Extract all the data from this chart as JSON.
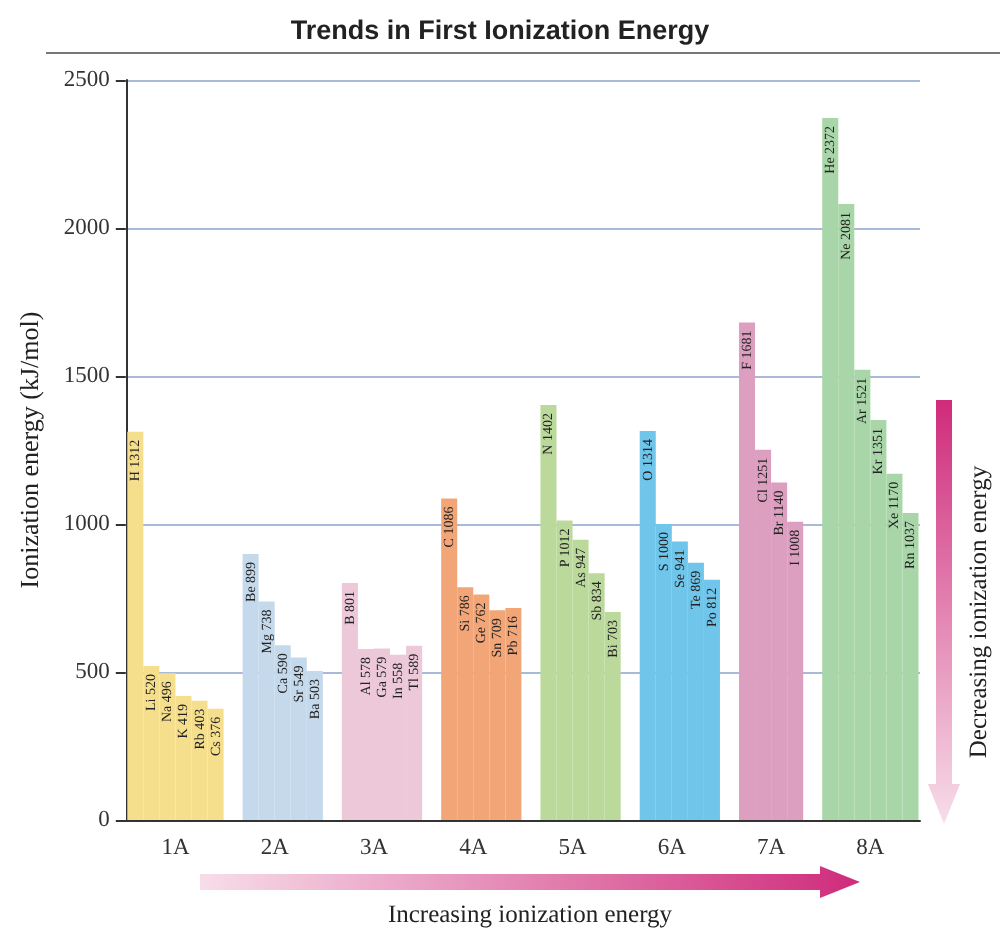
{
  "chart_data": {
    "type": "bar",
    "title": "Trends in First Ionization Energy",
    "ylabel": "Ionization energy (kJ/mol)",
    "categories": [
      "1A",
      "2A",
      "3A",
      "4A",
      "5A",
      "6A",
      "7A",
      "8A"
    ],
    "series": [
      {
        "values": [
          1312,
          null,
          null,
          null,
          null,
          null,
          null,
          2372
        ],
        "colors": [
          "#f5df8c",
          null,
          null,
          null,
          null,
          null,
          null,
          "#a9d6a9"
        ],
        "value_labels": [
          "H 1312",
          null,
          null,
          null,
          null,
          null,
          null,
          "He 2372"
        ]
      },
      {
        "values": [
          520,
          899,
          801,
          1086,
          1402,
          1314,
          1681,
          2081
        ],
        "colors": [
          "#f5df8c",
          "#c5d9ec",
          "#edc8d8",
          "#f2a678",
          "#bcd99c",
          "#6fc5ea",
          "#dc9fc0",
          "#a9d6a9"
        ],
        "value_labels": [
          "Li 520",
          "Be 899",
          "B 801",
          "C 1086",
          "N 1402",
          "O 1314",
          "F 1681",
          "Ne 2081"
        ]
      },
      {
        "values": [
          496,
          738,
          578,
          786,
          1012,
          1000,
          1251,
          1521
        ],
        "colors": [
          "#f5df8c",
          "#c5d9ec",
          "#edc8d8",
          "#f2a678",
          "#bcd99c",
          "#6fc5ea",
          "#dc9fc0",
          "#a9d6a9"
        ],
        "value_labels": [
          "Na 496",
          "Mg 738",
          "Al 578",
          "Si 786",
          "P 1012",
          "S 1000",
          "Cl 1251",
          "Ar 1521"
        ]
      },
      {
        "values": [
          419,
          590,
          579,
          762,
          947,
          941,
          1140,
          1351
        ],
        "colors": [
          "#f5df8c",
          "#c5d9ec",
          "#edc8d8",
          "#f2a678",
          "#bcd99c",
          "#6fc5ea",
          "#dc9fc0",
          "#a9d6a9"
        ],
        "value_labels": [
          "K 419",
          "Ca 590",
          "Ga 579",
          "Ge 762",
          "As 947",
          "Se 941",
          "Br 1140",
          "Kr 1351"
        ]
      },
      {
        "values": [
          403,
          549,
          558,
          709,
          834,
          869,
          1008,
          1170
        ],
        "colors": [
          "#f5df8c",
          "#c5d9ec",
          "#edc8d8",
          "#f2a678",
          "#bcd99c",
          "#6fc5ea",
          "#dc9fc0",
          "#a9d6a9"
        ],
        "value_labels": [
          "Rb 403",
          "Sr 549",
          "In 558",
          "Sn 709",
          "Sb 834",
          "Te 869",
          "I 1008",
          "Xe 1170"
        ]
      },
      {
        "values": [
          376,
          503,
          589,
          716,
          703,
          812,
          null,
          1037
        ],
        "colors": [
          "#f5df8c",
          "#c5d9ec",
          "#edc8d8",
          "#f2a678",
          "#bcd99c",
          "#6fc5ea",
          null,
          "#a9d6a9"
        ],
        "value_labels": [
          "Cs 376",
          "Ba 503",
          "Tl 589",
          "Pb 716",
          "Bi 703",
          "Po 812",
          null,
          "Rn 1037"
        ]
      }
    ],
    "ylim": [
      0,
      2500
    ],
    "yticks": [
      0,
      500,
      1000,
      1500,
      2000,
      2500
    ],
    "grid": "y",
    "annotations": [
      "Increasing ionization energy",
      "Decreasing ionization energy"
    ]
  }
}
